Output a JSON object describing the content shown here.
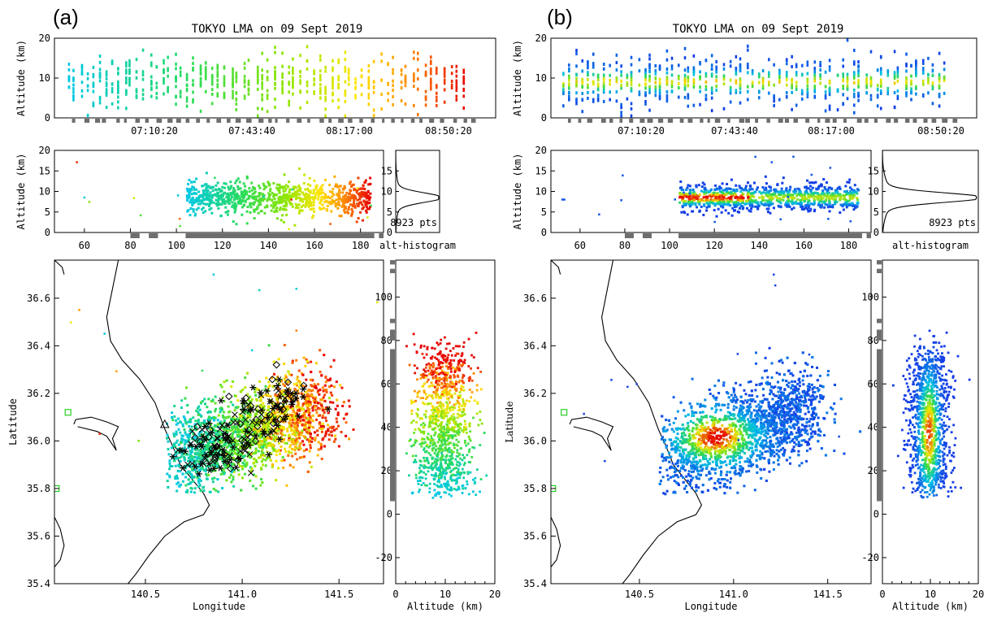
{
  "chart_data": [
    {
      "panel": "(a)",
      "title": "TOKYO LMA on 09 Sept 2019",
      "color_mode": "time",
      "time_height": {
        "type": "scatter",
        "ylabel": "Altitude (km)",
        "ylim": [
          0,
          20
        ],
        "yticks": [
          "0",
          "10",
          "20"
        ],
        "xticks": [
          "07:10:20",
          "07:43:40",
          "08:17:00",
          "08:50:20"
        ]
      },
      "lon_height": {
        "type": "scatter",
        "ylabel": "Altitude (km)",
        "ylim": [
          0,
          20
        ],
        "yticks": [
          "0",
          "5",
          "10",
          "15",
          "20"
        ],
        "xlim": [
          47,
          190
        ],
        "xticks": [
          "60",
          "80",
          "100",
          "120",
          "140",
          "160",
          "180"
        ]
      },
      "histogram": {
        "type": "line",
        "xlabel": "alt-histogram",
        "yticks": [
          "0",
          "5",
          "10",
          "15"
        ],
        "peak_altitude_km": 8.5,
        "count_label": "8923 pts"
      },
      "plan_view": {
        "type": "scatter",
        "xlabel": "Longitude",
        "ylabel": "Latitude",
        "xlim": [
          140.03,
          141.73
        ],
        "ylim": [
          35.4,
          36.76
        ],
        "xticks": [
          "140.5",
          "141.0",
          "141.5"
        ],
        "yticks": [
          "35.4",
          "35.6",
          "35.8",
          "36.0",
          "36.2",
          "36.4",
          "36.6"
        ],
        "overlay_markers": [
          "asterisk",
          "cross",
          "diamond",
          "triangle"
        ]
      },
      "alt_lat": {
        "type": "scatter",
        "xlabel": "Altitude (km)",
        "xlim": [
          0,
          20
        ],
        "xticks": [
          "0",
          "10",
          "20"
        ],
        "ylim": [
          -32,
          117
        ],
        "yticks": [
          "-20",
          "0",
          "20",
          "40",
          "60",
          "80",
          "100"
        ]
      }
    },
    {
      "panel": "(b)",
      "title": "TOKYO LMA on 09 Sept 2019",
      "color_mode": "density",
      "time_height": {
        "type": "scatter",
        "ylabel": "Altitude (km)",
        "ylim": [
          0,
          20
        ],
        "yticks": [
          "0",
          "10",
          "20"
        ],
        "xticks": [
          "07:10:20",
          "07:43:40",
          "08:17:00",
          "08:50:20"
        ]
      },
      "lon_height": {
        "type": "scatter",
        "ylabel": "Altitude (km)",
        "ylim": [
          0,
          20
        ],
        "yticks": [
          "0",
          "5",
          "10",
          "15",
          "20"
        ],
        "xlim": [
          47,
          190
        ],
        "xticks": [
          "60",
          "80",
          "100",
          "120",
          "140",
          "160",
          "180"
        ]
      },
      "histogram": {
        "type": "line",
        "xlabel": "alt-histogram",
        "yticks": [
          "0",
          "5",
          "10",
          "15"
        ],
        "peak_altitude_km": 8.5,
        "count_label": "8923 pts"
      },
      "plan_view": {
        "type": "heatmap",
        "xlabel": "Longitude",
        "ylabel": "Latitude",
        "xlim": [
          140.03,
          141.73
        ],
        "ylim": [
          35.4,
          36.76
        ],
        "xticks": [
          "140.5",
          "141.0",
          "141.5"
        ],
        "yticks": [
          "35.4",
          "35.6",
          "35.8",
          "36.0",
          "36.2",
          "36.4",
          "36.6"
        ]
      },
      "alt_lat": {
        "type": "heatmap",
        "xlabel": "Altitude (km)",
        "xlim": [
          0,
          20
        ],
        "xticks": [
          "0",
          "10",
          "20"
        ],
        "ylim": [
          -32,
          117
        ],
        "yticks": [
          "-20",
          "0",
          "20",
          "40",
          "60",
          "80",
          "100"
        ]
      }
    }
  ]
}
